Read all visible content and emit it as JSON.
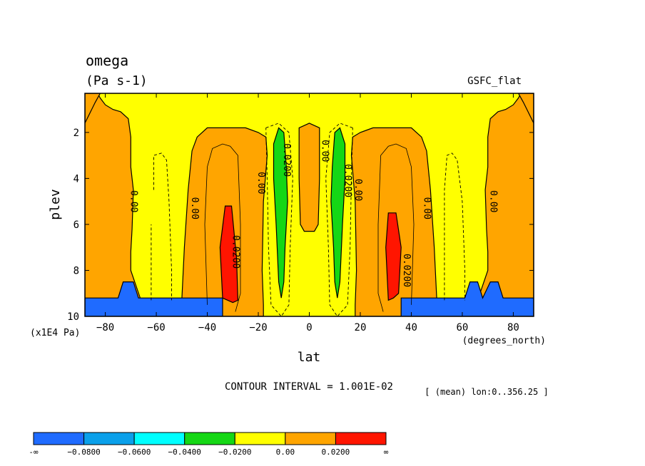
{
  "chart_data": {
    "type": "contour",
    "title": "omega",
    "units": "(Pa s-1)",
    "dataset": "GSFC_flat",
    "xlabel": "lat",
    "xunits": "(degrees_north)",
    "ylabel": "plev",
    "yunits": "(x1E4 Pa)",
    "xlim": [
      -88,
      88
    ],
    "ylim": [
      10,
      0.3
    ],
    "xticks": [
      -80,
      -60,
      -40,
      -20,
      0,
      20,
      40,
      60,
      80
    ],
    "xticklabels": [
      "−80",
      "−60",
      "−40",
      "−20",
      "0",
      "20",
      "40",
      "60",
      "80"
    ],
    "yticks": [
      2,
      4,
      6,
      8,
      10
    ],
    "yticklabels": [
      "2",
      "4",
      "6",
      "8",
      "10"
    ],
    "contour_interval_text": "CONTOUR INTERVAL = 1.001E-02",
    "mean_text": "[ (mean) lon:0..356.25 ]",
    "contour_labels": [
      {
        "text": "0.00",
        "lat": -69,
        "plev": 5
      },
      {
        "text": "0.00",
        "lat": -45,
        "plev": 5.3
      },
      {
        "text": "0.0200",
        "lat": -29,
        "plev": 7.2
      },
      {
        "text": "0.00",
        "lat": -19,
        "plev": 4.2
      },
      {
        "text": "0.0200",
        "lat": -9,
        "plev": 3.2
      },
      {
        "text": "0.00",
        "lat": 6,
        "plev": 2.8
      },
      {
        "text": "0.0200",
        "lat": 15,
        "plev": 4.1
      },
      {
        "text": "0.00",
        "lat": 19,
        "plev": 4.5
      },
      {
        "text": "0.0200",
        "lat": 38,
        "plev": 8
      },
      {
        "text": "0.00",
        "lat": 46,
        "plev": 5.3
      },
      {
        "text": "0.00",
        "lat": 72,
        "plev": 5
      }
    ],
    "colorbar": {
      "colors": [
        "#1f6bff",
        "#0aa0ea",
        "#00ffff",
        "#15d715",
        "#ffff00",
        "#ffa500",
        "#ff1500"
      ],
      "labels": [
        "-∞",
        "−0.0800",
        "−0.0600",
        "−0.0400",
        "−0.0200",
        "0.00",
        "0.0200",
        "∞"
      ]
    },
    "regions": [
      {
        "name": "yellow-base",
        "color": "#ffff00",
        "level": "-0.02..0.00",
        "points": [
          [
            -88,
            0.3
          ],
          [
            88,
            0.3
          ],
          [
            88,
            10
          ],
          [
            -88,
            10
          ]
        ]
      },
      {
        "name": "orange-left",
        "color": "#ffa500",
        "level": "0.00..0.02",
        "points": [
          [
            -88,
            0.3
          ],
          [
            -83,
            0.3
          ],
          [
            -82,
            0.5
          ],
          [
            -80,
            0.8
          ],
          [
            -77,
            1
          ],
          [
            -74,
            1.1
          ],
          [
            -71,
            1.4
          ],
          [
            -70,
            2.2
          ],
          [
            -70,
            3.5
          ],
          [
            -69,
            4.5
          ],
          [
            -69.5,
            6.2
          ],
          [
            -70,
            7.2
          ],
          [
            -70,
            8
          ],
          [
            -66,
            9.3
          ],
          [
            -50,
            9.3
          ],
          [
            -49,
            7
          ],
          [
            -47.5,
            4.5
          ],
          [
            -46,
            2.8
          ],
          [
            -44,
            2.2
          ],
          [
            -40,
            1.8
          ],
          [
            -35,
            1.8
          ],
          [
            -25,
            1.8
          ],
          [
            -20,
            2
          ],
          [
            -17,
            2.2
          ],
          [
            -16.5,
            3
          ],
          [
            -18,
            5
          ],
          [
            -18.5,
            8
          ],
          [
            -18,
            9.5
          ],
          [
            -18,
            10
          ],
          [
            -88,
            10
          ]
        ]
      },
      {
        "name": "orange-right",
        "color": "#ffa500",
        "level": "0.00..0.02",
        "points": [
          [
            88,
            0.3
          ],
          [
            83,
            0.3
          ],
          [
            82,
            0.5
          ],
          [
            80,
            0.8
          ],
          [
            77,
            1
          ],
          [
            74,
            1.1
          ],
          [
            71,
            1.4
          ],
          [
            70,
            2.2
          ],
          [
            70,
            3.5
          ],
          [
            69,
            4.5
          ],
          [
            69.5,
            6.2
          ],
          [
            70,
            7.2
          ],
          [
            70,
            8
          ],
          [
            66,
            9.3
          ],
          [
            50,
            9.3
          ],
          [
            49,
            7
          ],
          [
            47.5,
            4.5
          ],
          [
            46,
            2.8
          ],
          [
            44,
            2.2
          ],
          [
            40,
            1.8
          ],
          [
            35,
            1.8
          ],
          [
            25,
            1.8
          ],
          [
            20,
            2
          ],
          [
            17,
            2.2
          ],
          [
            16.5,
            3
          ],
          [
            18,
            5
          ],
          [
            18.5,
            8
          ],
          [
            18,
            9.5
          ],
          [
            18,
            10
          ],
          [
            88,
            10
          ]
        ]
      },
      {
        "name": "orange-top-left",
        "color": "#ffa500",
        "level": "0.00..0.02",
        "points": [
          [
            -88,
            0.3
          ],
          [
            -88,
            1.6
          ],
          [
            -84,
            0.7
          ],
          [
            -82,
            0.3
          ]
        ]
      },
      {
        "name": "orange-top-right",
        "color": "#ffa500",
        "level": "0.00..0.02",
        "points": [
          [
            88,
            0.3
          ],
          [
            88,
            1.6
          ],
          [
            84,
            0.7
          ],
          [
            82,
            0.3
          ]
        ]
      },
      {
        "name": "orange-center",
        "color": "#ffa500",
        "level": "0.00..0.02",
        "points": [
          [
            -4,
            1.8
          ],
          [
            0,
            1.6
          ],
          [
            4,
            1.8
          ],
          [
            4,
            4
          ],
          [
            3.5,
            6
          ],
          [
            2,
            6.3
          ],
          [
            -2,
            6.3
          ],
          [
            -3.5,
            6
          ],
          [
            -4,
            4
          ]
        ]
      },
      {
        "name": "red-left",
        "color": "#ff1500",
        "level": "> 0.02",
        "points": [
          [
            -33,
            5.2
          ],
          [
            -30.5,
            5.2
          ],
          [
            -28.5,
            7.5
          ],
          [
            -28,
            9.3
          ],
          [
            -30,
            9.4
          ],
          [
            -34,
            9.2
          ],
          [
            -35,
            7
          ]
        ]
      },
      {
        "name": "red-right",
        "color": "#ff1500",
        "level": "> 0.02",
        "points": [
          [
            31,
            5.5
          ],
          [
            34,
            5.5
          ],
          [
            36,
            7
          ],
          [
            35,
            9
          ],
          [
            33,
            9.2
          ],
          [
            31,
            9.3
          ],
          [
            30,
            7
          ]
        ]
      },
      {
        "name": "green-left",
        "color": "#15d715",
        "level": "-0.04..-0.02",
        "points": [
          [
            -12,
            1.8
          ],
          [
            -10,
            2
          ],
          [
            -9,
            3.5
          ],
          [
            -8.5,
            5
          ],
          [
            -9.5,
            7
          ],
          [
            -10,
            8.5
          ],
          [
            -11,
            9.2
          ],
          [
            -12,
            8.5
          ],
          [
            -13,
            6
          ],
          [
            -14,
            4
          ],
          [
            -14,
            2.5
          ]
        ]
      },
      {
        "name": "green-right",
        "color": "#15d715",
        "level": "-0.04..-0.02",
        "points": [
          [
            12,
            1.8
          ],
          [
            14,
            2.5
          ],
          [
            14,
            4
          ],
          [
            13,
            6
          ],
          [
            12,
            8.5
          ],
          [
            11,
            9.2
          ],
          [
            10,
            8.5
          ],
          [
            9.5,
            7
          ],
          [
            8.5,
            5
          ],
          [
            9,
            3.5
          ],
          [
            10,
            2
          ]
        ]
      },
      {
        "name": "blue-left",
        "color": "#1f6bff",
        "level": "< -0.08",
        "points": [
          [
            -88,
            9.2
          ],
          [
            -75,
            9.2
          ],
          [
            -73,
            8.5
          ],
          [
            -69,
            8.5
          ],
          [
            -67,
            9.2
          ],
          [
            -34,
            9.2
          ],
          [
            -34,
            10
          ],
          [
            -88,
            10
          ]
        ]
      },
      {
        "name": "blue-right",
        "color": "#1f6bff",
        "level": "< -0.08",
        "points": [
          [
            36,
            9.2
          ],
          [
            61,
            9.2
          ],
          [
            63,
            8.5
          ],
          [
            66,
            8.5
          ],
          [
            68,
            9.2
          ],
          [
            71,
            8.5
          ],
          [
            74,
            8.5
          ],
          [
            76,
            9.2
          ],
          [
            88,
            9.2
          ],
          [
            88,
            10
          ],
          [
            36,
            10
          ]
        ]
      }
    ],
    "dashed_lines": [
      [
        [
          -61,
          4.5
        ],
        [
          -61,
          3
        ],
        [
          -58,
          2.9
        ],
        [
          -56,
          3.2
        ],
        [
          -55,
          5
        ],
        [
          -54,
          8
        ],
        [
          -54,
          9.3
        ]
      ],
      [
        [
          -62,
          9.3
        ],
        [
          -62,
          6
        ]
      ],
      [
        [
          -17,
          1.8
        ],
        [
          -12,
          1.6
        ],
        [
          -8,
          2
        ],
        [
          -6.5,
          4
        ],
        [
          -7.5,
          7
        ],
        [
          -8,
          9.5
        ],
        [
          -11,
          10
        ],
        [
          -15,
          9.5
        ],
        [
          -16,
          7
        ],
        [
          -16.5,
          4
        ],
        [
          -17,
          1.8
        ]
      ],
      [
        [
          17,
          1.8
        ],
        [
          12,
          1.6
        ],
        [
          8,
          2
        ],
        [
          6.5,
          4
        ],
        [
          7.5,
          7
        ],
        [
          8,
          9.5
        ],
        [
          11,
          10
        ],
        [
          15,
          9.5
        ],
        [
          16,
          7
        ],
        [
          16.5,
          4
        ],
        [
          17,
          1.8
        ]
      ],
      [
        [
          53,
          9.3
        ],
        [
          53,
          4.5
        ],
        [
          54,
          3
        ],
        [
          56,
          2.9
        ],
        [
          58,
          3.2
        ],
        [
          60,
          5
        ],
        [
          61,
          8
        ],
        [
          61,
          9.3
        ]
      ]
    ],
    "thin_lines": [
      [
        [
          -40,
          9.5
        ],
        [
          -41,
          6
        ],
        [
          -40,
          3.5
        ],
        [
          -38,
          2.7
        ],
        [
          -34,
          2.5
        ],
        [
          -31,
          2.6
        ],
        [
          -28,
          3
        ],
        [
          -27,
          6
        ],
        [
          -27,
          9
        ],
        [
          -29,
          9.8
        ]
      ],
      [
        [
          40,
          9.5
        ],
        [
          41,
          6
        ],
        [
          40,
          3.5
        ],
        [
          38,
          2.7
        ],
        [
          34,
          2.5
        ],
        [
          31,
          2.6
        ],
        [
          28,
          3
        ],
        [
          27,
          6
        ],
        [
          27,
          9
        ],
        [
          29,
          9.8
        ]
      ]
    ]
  }
}
